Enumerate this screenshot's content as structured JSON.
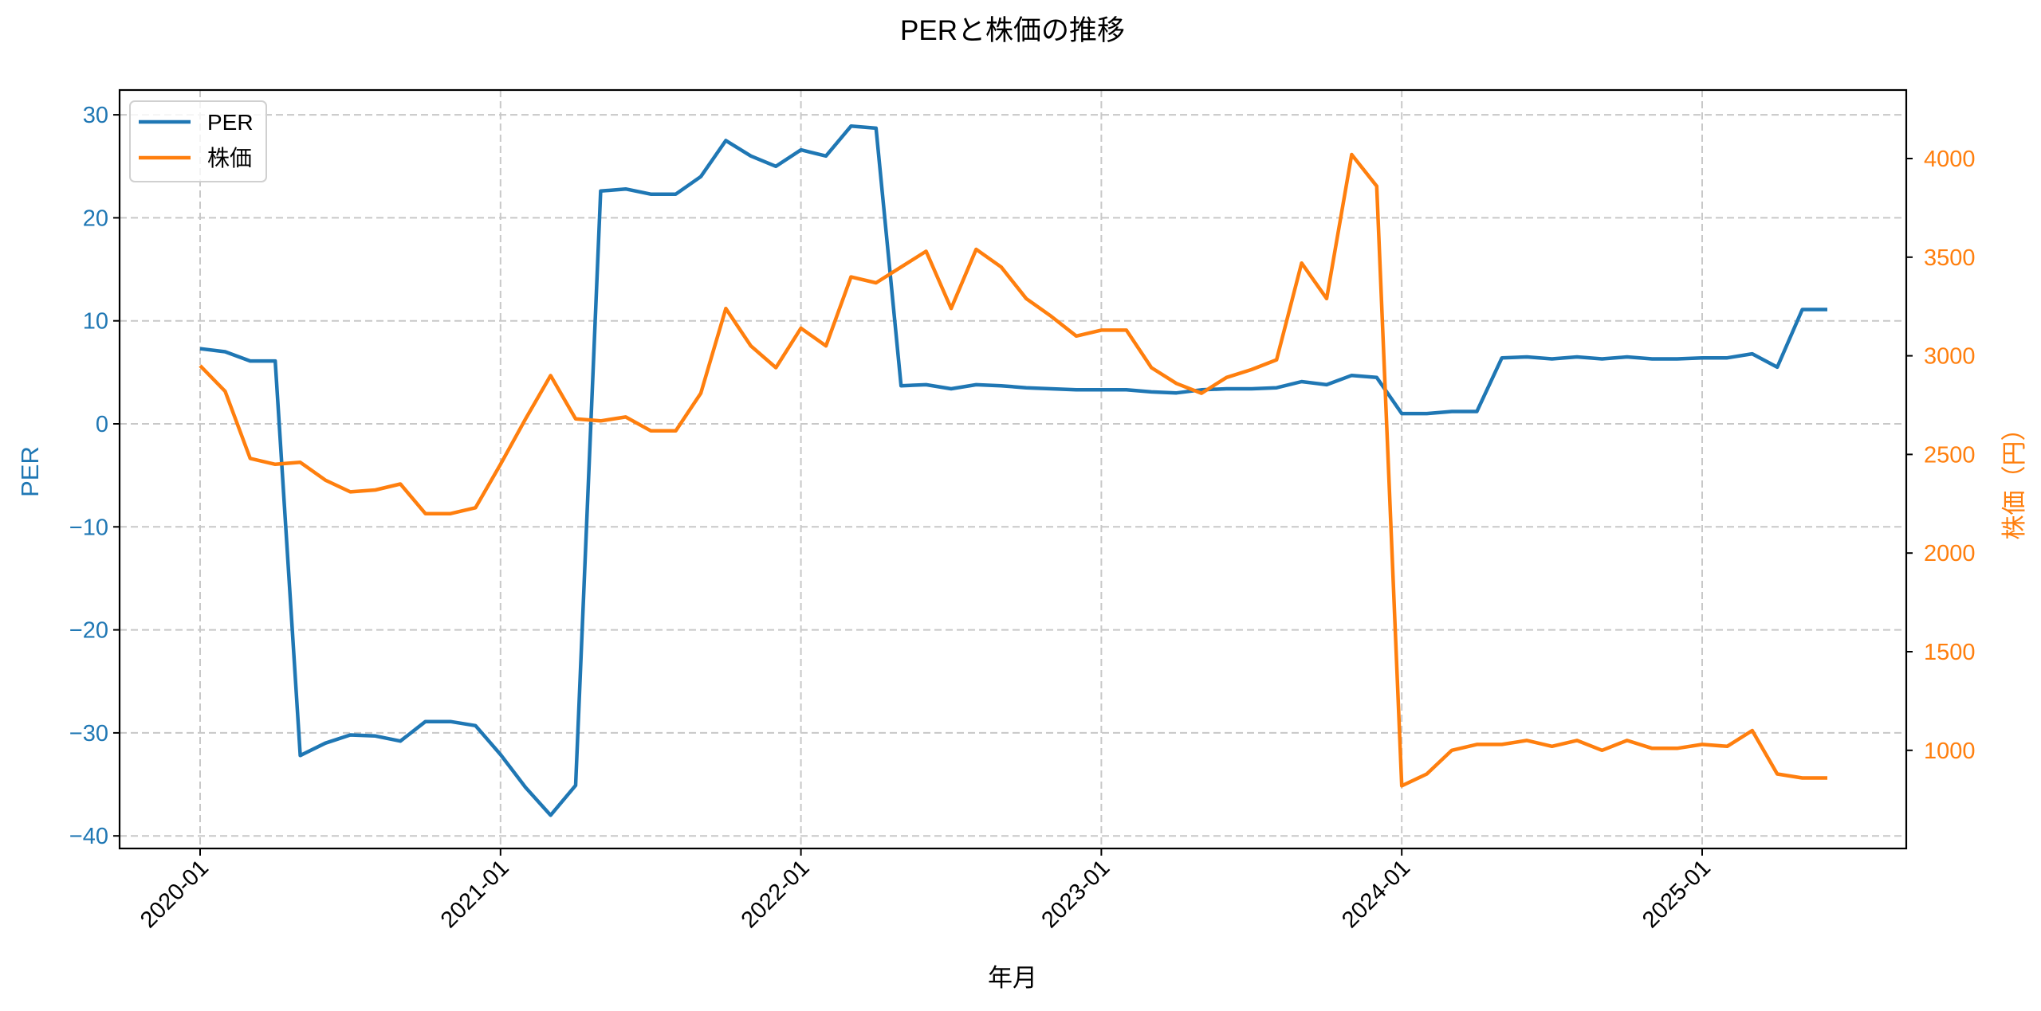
{
  "title": "PERと株価の推移",
  "colors": {
    "per": "#1f77b4",
    "price": "#ff7f0e",
    "grid": "#c8c8c8",
    "axis": "#000000"
  },
  "legend": {
    "items": [
      {
        "label": "PER",
        "color": "#1f77b4"
      },
      {
        "label": "株価",
        "color": "#ff7f0e"
      }
    ]
  },
  "chart_data": {
    "type": "line",
    "title": "PERと株価の推移",
    "xlabel": "年月",
    "ylabel": "PER",
    "ylabel_right": "株価（円）",
    "x_ticks": [
      "2020-01",
      "2021-01",
      "2022-01",
      "2023-01",
      "2024-01",
      "2025-01"
    ],
    "y_ticks_left": [
      30,
      20,
      10,
      0,
      -10,
      -20,
      -30,
      -40
    ],
    "y_ticks_right": [
      4000,
      3500,
      3000,
      2500,
      2000,
      1500,
      1000
    ],
    "ylim_left": [
      -41.3,
      32.6
    ],
    "ylim_right": [
      580,
      4290
    ],
    "grid": true,
    "legend_position": "upper left",
    "x": [
      "2020-01",
      "2020-02",
      "2020-03",
      "2020-04",
      "2020-05",
      "2020-06",
      "2020-07",
      "2020-08",
      "2020-09",
      "2020-10",
      "2020-11",
      "2020-12",
      "2021-01",
      "2021-02",
      "2021-03",
      "2021-04",
      "2021-05",
      "2021-06",
      "2021-07",
      "2021-08",
      "2021-09",
      "2021-10",
      "2021-11",
      "2021-12",
      "2022-01",
      "2022-02",
      "2022-03",
      "2022-04",
      "2022-05",
      "2022-06",
      "2022-07",
      "2022-08",
      "2022-09",
      "2022-10",
      "2022-11",
      "2022-12",
      "2023-01",
      "2023-02",
      "2023-03",
      "2023-04",
      "2023-05",
      "2023-06",
      "2023-07",
      "2023-08",
      "2023-09",
      "2023-10",
      "2023-11",
      "2023-12",
      "2024-01",
      "2024-02",
      "2024-03",
      "2024-04",
      "2024-05",
      "2024-06",
      "2024-07",
      "2024-08",
      "2024-09",
      "2024-10",
      "2024-11",
      "2024-12",
      "2025-01",
      "2025-02",
      "2025-03",
      "2025-04",
      "2025-05",
      "2025-06"
    ],
    "series": [
      {
        "name": "PER",
        "axis": "left",
        "color": "#1f77b4",
        "values": [
          7.3,
          7.0,
          6.1,
          6.1,
          -32.2,
          -31.0,
          -30.2,
          -30.3,
          -30.8,
          -28.9,
          -28.9,
          -29.3,
          -32.1,
          -35.3,
          -38.0,
          -35.1,
          22.6,
          22.8,
          22.3,
          22.3,
          24.0,
          27.5,
          26.0,
          25.0,
          26.6,
          26.0,
          28.9,
          28.7,
          3.7,
          3.8,
          3.4,
          3.8,
          3.7,
          3.5,
          3.4,
          3.3,
          3.3,
          3.3,
          3.1,
          3.0,
          3.3,
          3.4,
          3.4,
          3.5,
          4.1,
          3.8,
          4.7,
          4.5,
          1.0,
          1.0,
          1.2,
          1.2,
          6.4,
          6.5,
          6.3,
          6.5,
          6.3,
          6.5,
          6.3,
          6.3,
          6.4,
          6.4,
          6.8,
          5.5,
          11.1,
          11.1
        ]
      },
      {
        "name": "株価",
        "axis": "right",
        "color": "#ff7f0e",
        "values": [
          2950,
          2820,
          2480,
          2450,
          2460,
          2370,
          2310,
          2320,
          2350,
          2200,
          2200,
          2230,
          2450,
          2680,
          2900,
          2680,
          2670,
          2690,
          2620,
          2620,
          2810,
          3240,
          3050,
          2940,
          3140,
          3050,
          3400,
          3370,
          3450,
          3530,
          3240,
          3540,
          3450,
          3290,
          3200,
          3100,
          3130,
          3130,
          2940,
          2860,
          2810,
          2890,
          2930,
          2980,
          3470,
          3290,
          4020,
          3860,
          820,
          880,
          1000,
          1030,
          1030,
          1050,
          1020,
          1050,
          1000,
          1050,
          1010,
          1010,
          1030,
          1020,
          1100,
          880,
          860,
          860
        ]
      }
    ]
  }
}
